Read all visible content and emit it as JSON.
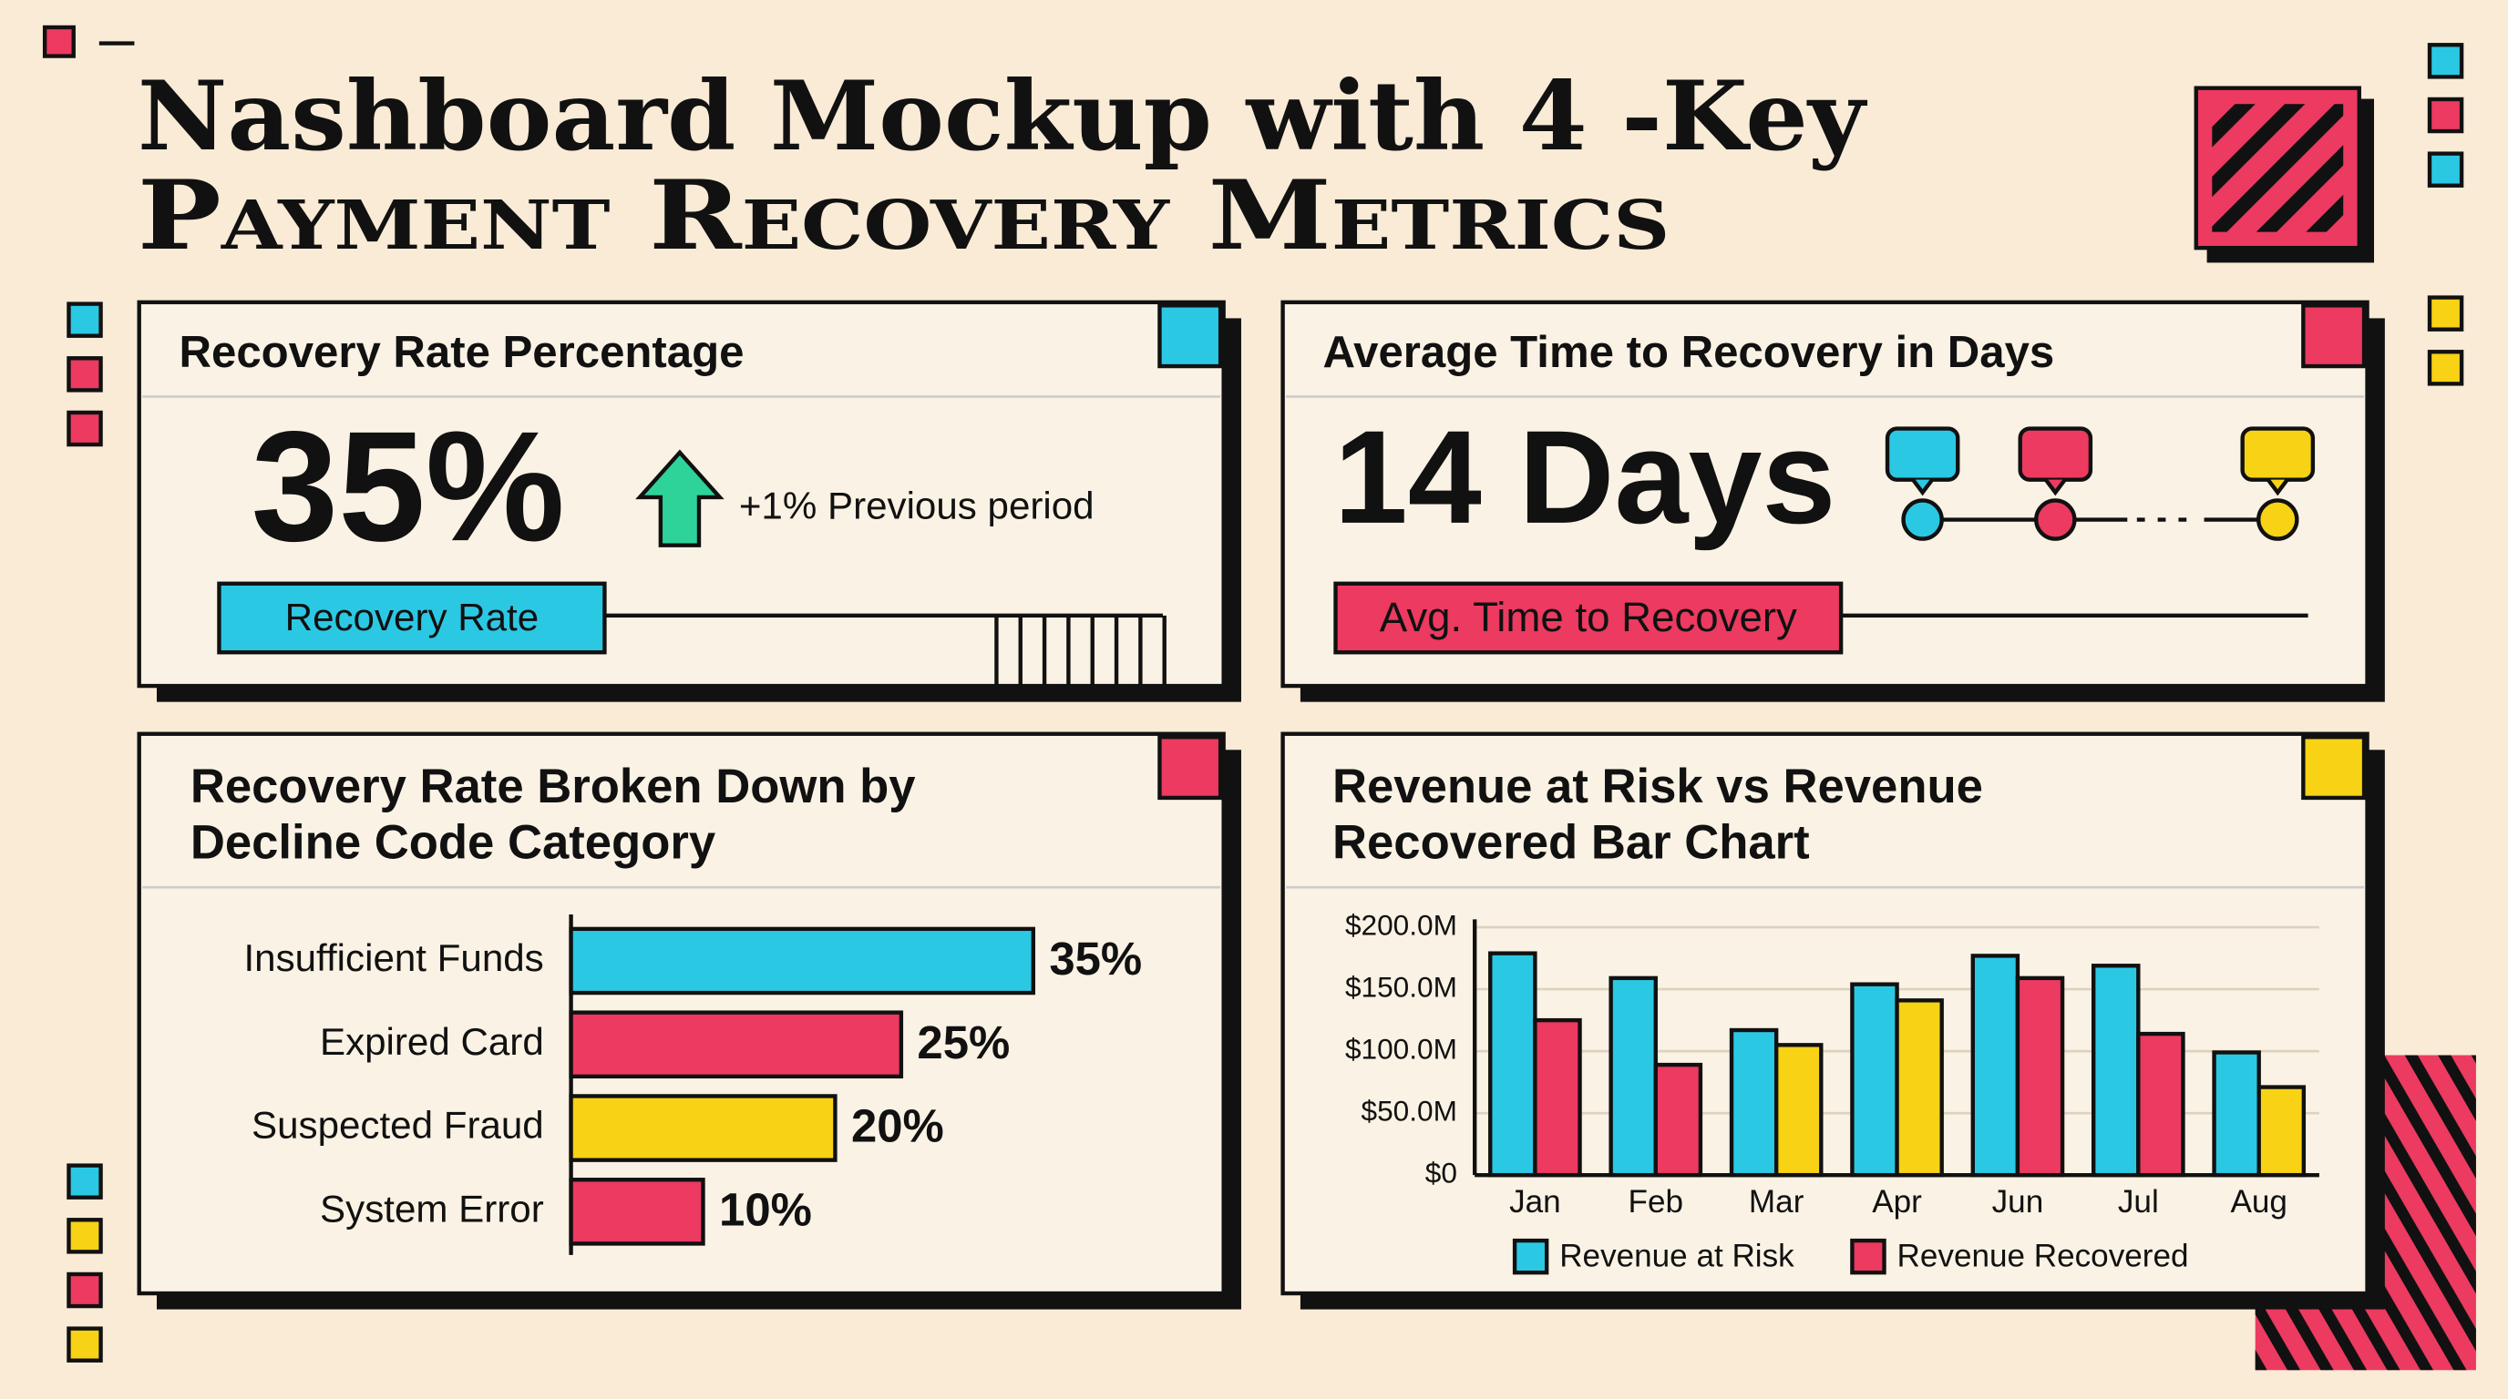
{
  "header": {
    "title_lines": [
      "Nashboard Mockup with 4 -Key",
      "Payment Recovery Metrics"
    ]
  },
  "kpis": [
    {
      "title": "Recovery Rate Percentage",
      "value": "35%",
      "change": "+1% Previous period",
      "label": "Recovery Rate",
      "color": "#2bc8e4"
    },
    {
      "title": "Average Time to Recovery in Days",
      "value": "14 Days",
      "label": "Avg. Time to Recovery",
      "color": "#ec3a60"
    }
  ],
  "chart_data": [
    {
      "type": "hbar",
      "title_lines": [
        "Recovery Rate Broken Down by",
        "Decline Code Category"
      ],
      "categories": [
        "Insufficient Funds",
        "Expired Card",
        "Suspected Fraud",
        "System Error"
      ],
      "values": [
        35,
        25,
        20,
        10
      ],
      "value_labels": [
        "35%",
        "25%",
        "20%",
        "10%"
      ],
      "colors": [
        "#2bc8e4",
        "#ec3a60",
        "#f7d215",
        "#ec3a60"
      ]
    },
    {
      "type": "bar",
      "title_lines": [
        "Revenue at Risk vs Revenue",
        "Recovered Bar Chart"
      ],
      "categories": [
        "Jan",
        "Feb",
        "Mar",
        "Apr",
        "Jun",
        "Jul",
        "Aug"
      ],
      "series": [
        {
          "name": "Revenue at Risk",
          "color": "#2bc8e4",
          "values": [
            179000000,
            159000000,
            117000000,
            154000000,
            177000000,
            169000000,
            99000000
          ]
        },
        {
          "name": "Revenue Recovered",
          "color": "#ec3a60",
          "bar_colors": [
            "#ec3a60",
            "#ec3a60",
            "#f7d215",
            "#f7d215",
            "#ec3a60",
            "#ec3a60",
            "#f7d215"
          ],
          "values": [
            125000000,
            89000000,
            105000000,
            141000000,
            159000000,
            114000000,
            71000000
          ]
        }
      ],
      "ylim": [
        0,
        200000000
      ],
      "yticks": [
        {
          "value": 0,
          "label": "$0"
        },
        {
          "value": 50000000,
          "label": "$50.0M"
        },
        {
          "value": 100000000,
          "label": "$100.0M"
        },
        {
          "value": 150000000,
          "label": "$150.0M"
        },
        {
          "value": 200000000,
          "label": "$200.0M"
        }
      ],
      "grid": true,
      "legend": "bottom"
    }
  ]
}
